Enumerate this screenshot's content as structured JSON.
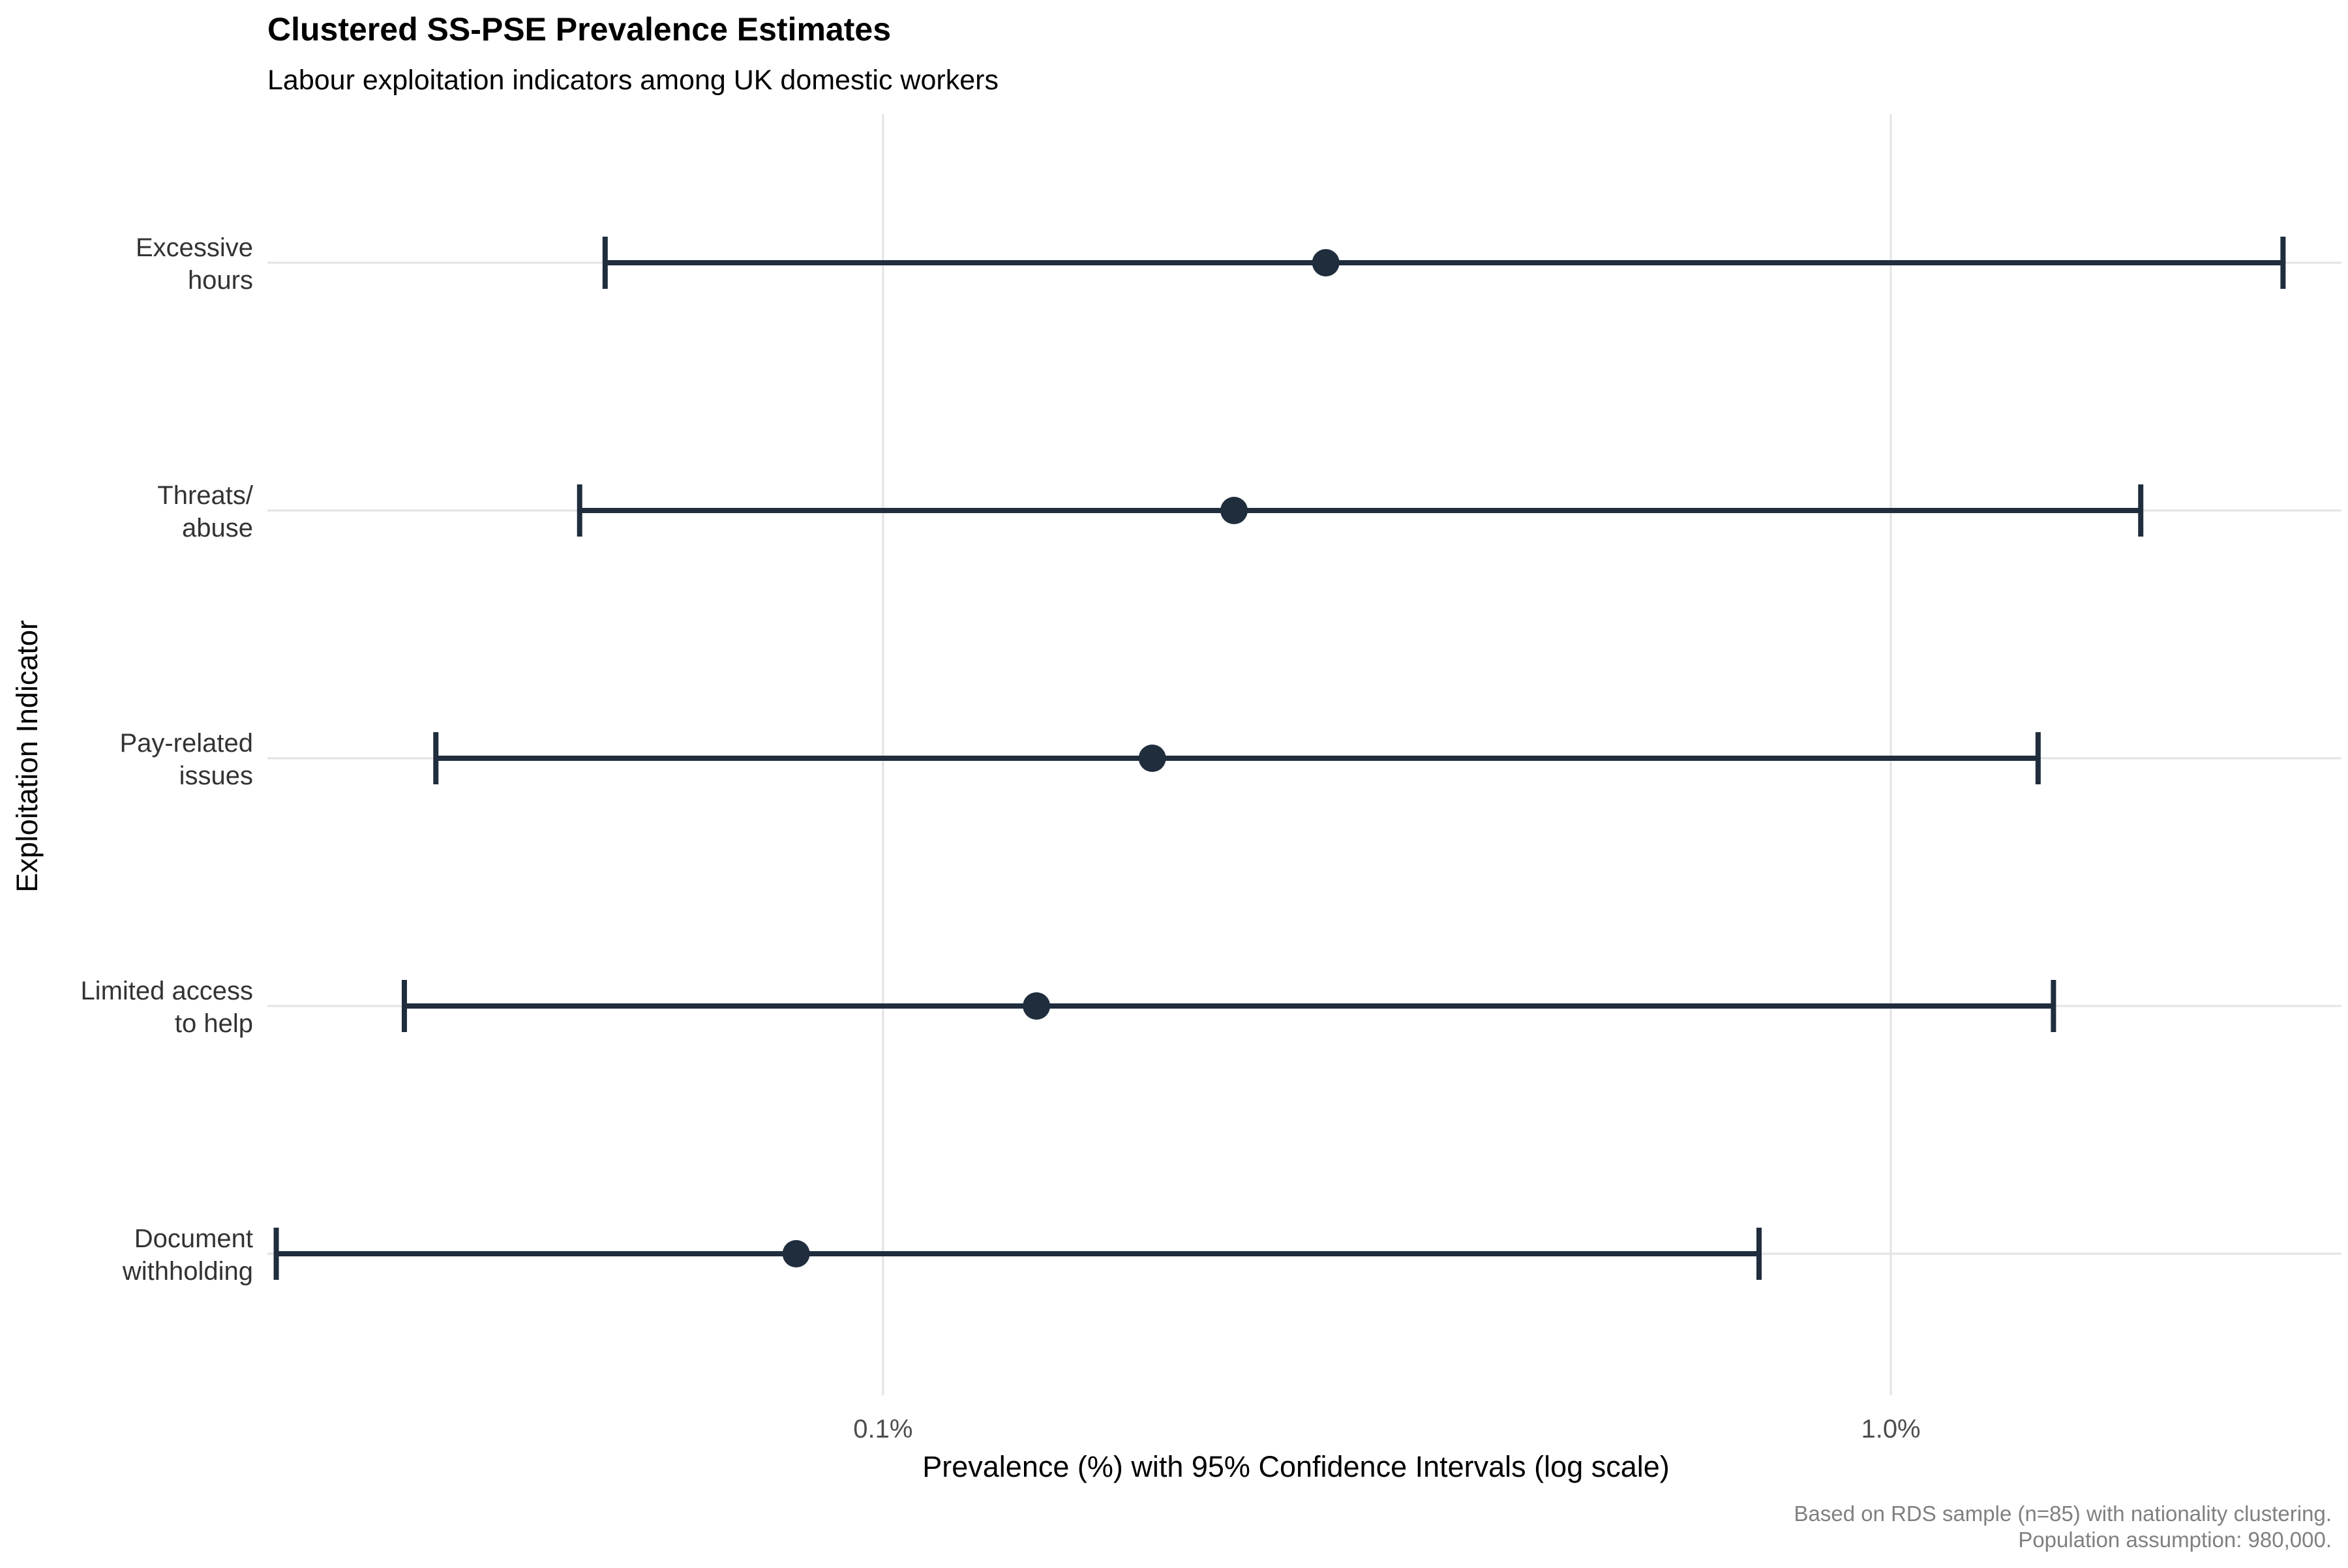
{
  "chart_data": {
    "type": "errorbar",
    "title": "Clustered SS-PSE Prevalence Estimates",
    "subtitle": "Labour exploitation indicators among UK domestic workers",
    "xlabel": "Prevalence (%) with 95% Confidence Intervals (log scale)",
    "ylabel": "Exploitation Indicator",
    "x_scale": "log",
    "xlim": [
      0.0245,
      2.8
    ],
    "x_ticks": [
      {
        "value": 0.1,
        "label": "0.1%"
      },
      {
        "value": 1.0,
        "label": "1.0%"
      }
    ],
    "grid": true,
    "legend": "none",
    "caption": [
      "Based on RDS sample (n=85) with nationality clustering.",
      "Population assumption: 980,000."
    ],
    "colors": {
      "series": "#1f2d3d",
      "grid": "#e3e3e3",
      "text": "#333333",
      "caption": "#808080"
    },
    "categories": [
      {
        "label": [
          "Excessive",
          "hours"
        ],
        "estimate": 0.275,
        "lower": 0.053,
        "upper": 2.45
      },
      {
        "label": [
          "Threats/",
          "abuse"
        ],
        "estimate": 0.223,
        "lower": 0.05,
        "upper": 1.77
      },
      {
        "label": [
          "Pay-related",
          "issues"
        ],
        "estimate": 0.185,
        "lower": 0.036,
        "upper": 1.4
      },
      {
        "label": [
          "Limited access",
          "to help"
        ],
        "estimate": 0.142,
        "lower": 0.0335,
        "upper": 1.45
      },
      {
        "label": [
          "Document",
          "withholding"
        ],
        "estimate": 0.082,
        "lower": 0.025,
        "upper": 0.74
      }
    ]
  }
}
